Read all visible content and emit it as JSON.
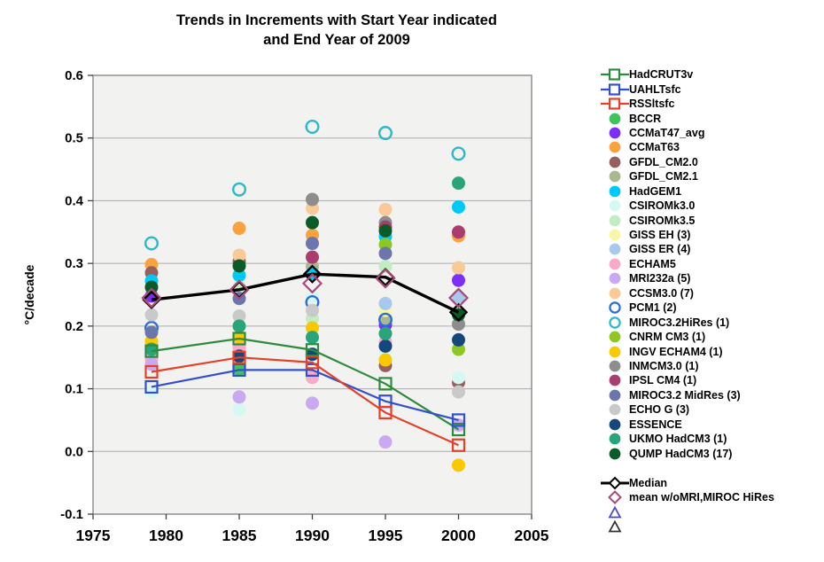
{
  "title": {
    "line1": "Trends in Increments with Start Year indicated",
    "line2": "and End Year of 2009"
  },
  "chart_data": {
    "type": "scatter",
    "x": [
      1979,
      1985,
      1990,
      1995,
      2000
    ],
    "xlim": [
      1975,
      2005
    ],
    "ylim": [
      -0.1,
      0.6
    ],
    "xticks": [
      "1975",
      "1980",
      "1985",
      "1990",
      "1995",
      "2000",
      "2005"
    ],
    "yticks": [
      "0.6",
      "0.5",
      "0.4",
      "0.3",
      "0.2",
      "0.1",
      "0.0",
      "-0.1"
    ],
    "ylabel": "°C/decade",
    "grid": "horizontal",
    "legend_position": "right",
    "plot_bg": "#f2f2f0",
    "grid_color": "#ababab",
    "border_color": "#7f7f7f",
    "line_series": [
      {
        "name": "HadCRUT3v",
        "color": "#2e8b3d",
        "marker": "square-open",
        "values": [
          0.16,
          0.18,
          0.162,
          0.108,
          0.035
        ]
      },
      {
        "name": "UAHLTsfc",
        "color": "#3350cc",
        "marker": "square-open",
        "values": [
          0.103,
          0.13,
          0.13,
          0.08,
          0.05
        ]
      },
      {
        "name": "RSSltsfc",
        "color": "#e54028",
        "marker": "square-open",
        "values": [
          0.127,
          0.15,
          0.142,
          0.062,
          0.01
        ]
      }
    ],
    "scatter_series": [
      {
        "name": "BCCR",
        "color": "#3fc35c",
        "marker": "dot",
        "values": [
          null,
          0.131,
          null,
          null,
          null
        ]
      },
      {
        "name": "CCMaT47_avg",
        "color": "#7b2ff7",
        "marker": "dot",
        "values": [
          0.248,
          null,
          null,
          0.202,
          0.273
        ]
      },
      {
        "name": "CCMaT63",
        "color": "#f9a23f",
        "marker": "dot",
        "values": [
          0.298,
          0.356,
          0.345,
          null,
          0.344
        ]
      },
      {
        "name": "GFDL_CM2.0",
        "color": "#96605e",
        "marker": "dot",
        "values": [
          0.285,
          0.303,
          null,
          0.137,
          0.11
        ]
      },
      {
        "name": "GFDL_CM2.1",
        "color": "#a9b88f",
        "marker": "dot",
        "values": [
          null,
          null,
          0.295,
          0.212,
          null
        ]
      },
      {
        "name": "HadGEM1",
        "color": "#00c9f9",
        "marker": "dot",
        "values": [
          0.272,
          0.281,
          0.284,
          0.343,
          0.39
        ]
      },
      {
        "name": "CSIROMk3.0",
        "color": "#d5f8f3",
        "marker": "dot",
        "values": [
          0.095,
          0.067,
          0.248,
          0.157,
          0.118
        ]
      },
      {
        "name": "CSIROMk3.5",
        "color": "#c2ecc2",
        "marker": "dot",
        "values": [
          null,
          0.262,
          0.212,
          0.295,
          null
        ]
      },
      {
        "name": "GISS EH (3)",
        "color": "#f8f7a6",
        "marker": "dot",
        "values": [
          0.18,
          null,
          null,
          0.225,
          null
        ]
      },
      {
        "name": "GISS ER (4)",
        "color": "#a7c9ed",
        "marker": "dot",
        "values": [
          null,
          null,
          null,
          0.236,
          0.247
        ]
      },
      {
        "name": "ECHAM5",
        "color": "#f9a9c9",
        "marker": "dot",
        "values": [
          0.147,
          0.166,
          0.118,
          0.175,
          null
        ]
      },
      {
        "name": "MRI232a (5)",
        "color": "#c9a9f1",
        "marker": "dot",
        "values": [
          0.139,
          0.087,
          0.077,
          0.015,
          0.042
        ]
      },
      {
        "name": "CCSM3.0 (7)",
        "color": "#f9c997",
        "marker": "dot",
        "values": [
          null,
          0.313,
          0.388,
          0.386,
          0.293
        ]
      },
      {
        "name": "PCM1 (2)",
        "color": "#2c6cdb",
        "marker": "circle-open",
        "values": [
          0.197,
          null,
          0.238,
          0.21,
          null
        ]
      },
      {
        "name": "MIROC3.2HiRes (1)",
        "color": "#2ab9c9",
        "marker": "circle-open",
        "values": [
          0.332,
          0.418,
          0.518,
          0.508,
          0.475
        ]
      },
      {
        "name": "CNRM CM3 (1)",
        "color": "#8cc821",
        "marker": "dot",
        "values": [
          null,
          null,
          null,
          0.33,
          0.163
        ]
      },
      {
        "name": "INGV ECHAM4 (1)",
        "color": "#f9c900",
        "marker": "dot",
        "values": [
          0.176,
          0.183,
          0.197,
          0.146,
          -0.022
        ]
      },
      {
        "name": "INMCM3.0 (1)",
        "color": "#8d8d8d",
        "marker": "dot",
        "values": [
          null,
          null,
          0.402,
          0.365,
          0.203
        ]
      },
      {
        "name": "IPSL CM4 (1)",
        "color": "#a93d6e",
        "marker": "dot",
        "values": [
          null,
          null,
          0.31,
          0.358,
          0.35
        ]
      },
      {
        "name": "MIROC3.2 MidRes (3)",
        "color": "#6d75ad",
        "marker": "dot",
        "values": [
          0.19,
          0.244,
          0.332,
          0.316,
          null
        ]
      },
      {
        "name": "ECHO G (3)",
        "color": "#c9c9c9",
        "marker": "dot",
        "values": [
          0.218,
          0.216,
          0.225,
          null,
          0.095
        ]
      },
      {
        "name": "ESSENCE",
        "color": "#15477d",
        "marker": "dot",
        "values": [
          null,
          0.152,
          0.155,
          0.168,
          0.178
        ]
      },
      {
        "name": "UKMO HadCM3 (1)",
        "color": "#29a579",
        "marker": "dot",
        "values": [
          0.163,
          0.2,
          0.182,
          0.188,
          0.428
        ]
      },
      {
        "name": "QUMP HadCM3 (17)",
        "color": "#0b5b29",
        "marker": "dot",
        "values": [
          0.262,
          0.296,
          0.365,
          0.352,
          0.218
        ]
      }
    ],
    "reference_series": [
      {
        "name": "Median",
        "color": "#000000",
        "marker": "line-diamond",
        "values": [
          0.242,
          0.258,
          0.283,
          0.278,
          0.222
        ]
      },
      {
        "name": "mean w/oMRI,MIROC HiRes",
        "color": "#a84a78",
        "marker": "diamond-open",
        "values": [
          0.245,
          0.258,
          0.268,
          0.276,
          0.245
        ]
      }
    ],
    "extra_legend_markers": [
      {
        "shape": "triangle-open",
        "color": "#4747d1",
        "label": ""
      },
      {
        "shape": "triangle-open",
        "color": "#333333",
        "label": ""
      }
    ]
  }
}
